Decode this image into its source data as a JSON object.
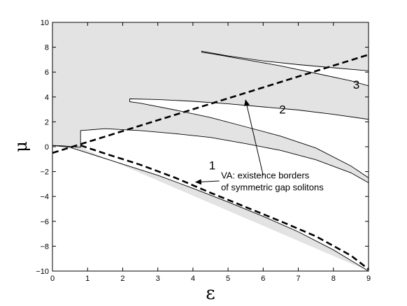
{
  "chart_data": {
    "type": "area",
    "xlabel": "ε",
    "ylabel": "μ",
    "xlim": [
      0,
      9
    ],
    "ylim": [
      -10,
      10
    ],
    "x_ticks": [
      0,
      1,
      2,
      3,
      4,
      5,
      6,
      7,
      8,
      9
    ],
    "y_ticks": [
      -10,
      -8,
      -6,
      -4,
      -2,
      0,
      2,
      4,
      6,
      8,
      10
    ],
    "x_tick_labels": [
      "0",
      "1",
      "2",
      "3",
      "4",
      "5",
      "6",
      "7",
      "8",
      "9"
    ],
    "y_tick_labels": [
      "−10",
      "−8",
      "−6",
      "−4",
      "−2",
      "0",
      "2",
      "4",
      "6",
      "8",
      "10"
    ],
    "grid": false,
    "colors": {
      "shaded": "#e3e3e3",
      "line": "#000000"
    },
    "series": [
      {
        "kind": "shaded-region",
        "upper": [
          [
            0,
            10
          ],
          [
            9,
            10
          ]
        ],
        "lower": [
          [
            0,
            0.1
          ],
          [
            0.3,
            0.07
          ],
          [
            0.6,
            0.0
          ],
          [
            0.8,
            -0.05
          ],
          [
            0.8,
            1.3
          ],
          [
            1.5,
            1.45
          ],
          [
            2.5,
            1.3
          ],
          [
            3.5,
            1.05
          ],
          [
            4.5,
            0.75
          ],
          [
            5.5,
            0.25
          ],
          [
            6.5,
            -0.3
          ],
          [
            7.5,
            -1.05
          ],
          [
            8.5,
            -2.1
          ],
          [
            9,
            -2.9
          ],
          [
            9,
            -2.5
          ],
          [
            8.5,
            -1.55
          ],
          [
            7.5,
            -0.1
          ],
          [
            6.5,
            0.85
          ],
          [
            5.5,
            1.6
          ],
          [
            4.5,
            2.35
          ],
          [
            3.5,
            2.95
          ],
          [
            2.5,
            3.5
          ],
          [
            2.2,
            3.62
          ],
          [
            2.2,
            3.85
          ],
          [
            3.0,
            3.8
          ],
          [
            4.0,
            3.65
          ],
          [
            5.0,
            3.45
          ],
          [
            6.0,
            3.2
          ],
          [
            7.0,
            2.95
          ],
          [
            8.0,
            2.6
          ],
          [
            9.0,
            2.2
          ],
          [
            9,
            4.9
          ],
          [
            8.5,
            5.3
          ],
          [
            7.5,
            5.9
          ],
          [
            6.5,
            6.5
          ],
          [
            5.5,
            7.0
          ],
          [
            4.6,
            7.45
          ],
          [
            4.25,
            7.6
          ],
          [
            4.25,
            7.68
          ],
          [
            5.0,
            7.3
          ],
          [
            6.0,
            6.9
          ],
          [
            7.0,
            6.6
          ],
          [
            8.0,
            6.35
          ],
          [
            9,
            6.1
          ],
          [
            9,
            10
          ]
        ]
      },
      {
        "kind": "shaded-region",
        "upper": [
          [
            0,
            0.1
          ],
          [
            0.3,
            0.07
          ],
          [
            0.6,
            0.0
          ],
          [
            0.8,
            -0.05
          ]
        ],
        "lower": [
          [
            0,
            0.1
          ],
          [
            0.5,
            -0.05
          ],
          [
            1,
            -0.5
          ],
          [
            2,
            -1.4
          ],
          [
            3,
            -2.3
          ],
          [
            4,
            -3.35
          ],
          [
            5,
            -4.45
          ],
          [
            6,
            -5.6
          ],
          [
            7,
            -6.85
          ],
          [
            8,
            -8.3
          ],
          [
            9,
            -10
          ]
        ]
      },
      {
        "kind": "dashed-line",
        "name": "VA upper border",
        "points": [
          [
            0,
            -0.5
          ],
          [
            9,
            7.4
          ]
        ]
      },
      {
        "kind": "dashed-line",
        "name": "VA lower border",
        "points": [
          [
            0.8,
            0.1
          ],
          [
            1.5,
            -0.55
          ],
          [
            2.5,
            -1.45
          ],
          [
            3.5,
            -2.5
          ],
          [
            4.5,
            -3.7
          ],
          [
            5.5,
            -4.85
          ],
          [
            6.5,
            -6.0
          ],
          [
            7.5,
            -7.2
          ],
          [
            8.5,
            -8.75
          ],
          [
            9,
            -9.85
          ]
        ]
      }
    ],
    "region_labels": [
      {
        "text": "1",
        "x": 4.55,
        "y": -1.5
      },
      {
        "text": "2",
        "x": 6.55,
        "y": 3.0
      },
      {
        "text": "3",
        "x": 8.65,
        "y": 5.0
      }
    ],
    "annotation": {
      "lines": [
        "VA: existence borders",
        "of symmetric gap solitons"
      ],
      "text_at": [
        4.8,
        -2.55
      ],
      "arrows": [
        {
          "from": [
            4.75,
            -2.75
          ],
          "to": [
            4.08,
            -2.85
          ]
        },
        {
          "from": [
            6.0,
            -2.3
          ],
          "to": [
            5.5,
            3.75
          ]
        }
      ]
    }
  }
}
